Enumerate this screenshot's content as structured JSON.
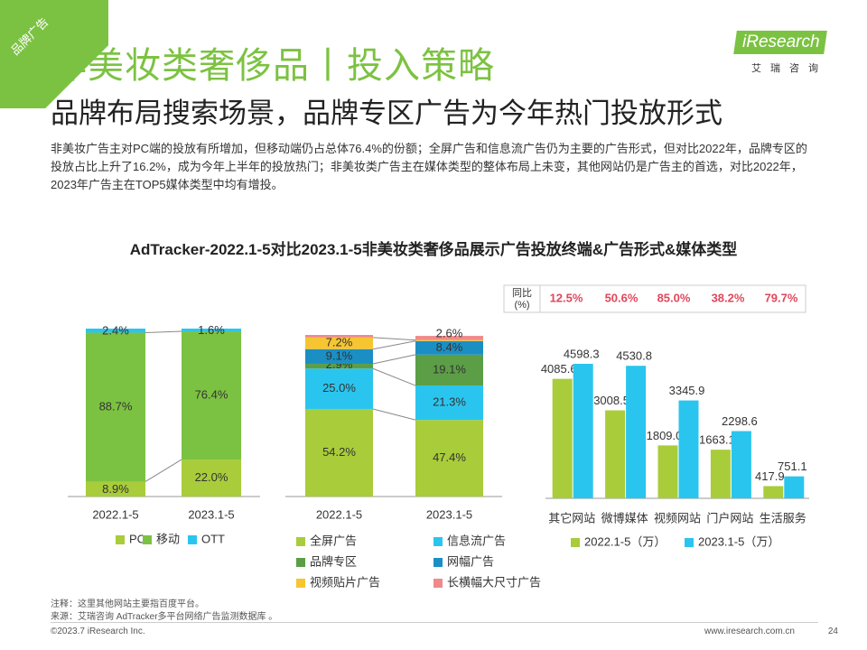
{
  "corner_tag": "品牌广告",
  "title": "非美妆类奢侈品丨投入策略",
  "subtitle": "品牌布局搜索场景，品牌专区广告为今年热门投放形式",
  "logo": {
    "text": "iResearch",
    "cn": "艾瑞咨询"
  },
  "description": "非美妆广告主对PC端的投放有所增加，但移动端仍占总体76.4%的份额；全屏广告和信息流广告仍为主要的广告形式，但对比2022年，品牌专区的投放占比上升了16.2%，成为今年上半年的投放热门；非美妆类广告主在媒体类型的整体布局上未变，其他网站仍是广告主的首选，对比2022年，2023年广告主在TOP5媒体类型中均有增投。",
  "chart_main_title": "AdTracker-2022.1-5对比2023.1-5非美妆类奢侈品展示广告投放终端&广告形式&媒体类型",
  "colors": {
    "green_light": "#a9cc3b",
    "green": "#7cc242",
    "green_dark": "#5b9e46",
    "cyan": "#2ac5ee",
    "blue": "#1b8fc4",
    "yellow": "#f6c531",
    "pink": "#f08a8a",
    "red_text": "#e0475a"
  },
  "chart_data": [
    {
      "type": "bar",
      "stacked": true,
      "normalized": true,
      "categories": [
        "2022.1-5",
        "2023.1-5"
      ],
      "series": [
        {
          "name": "PC",
          "values": [
            8.9,
            22.0
          ],
          "labels": [
            "8.9%",
            "22.0%"
          ],
          "color": "#a9cc3b"
        },
        {
          "name": "移动",
          "values": [
            88.7,
            76.4
          ],
          "labels": [
            "88.7%",
            "76.4%"
          ],
          "color": "#7cc242"
        },
        {
          "name": "OTT",
          "values": [
            2.4,
            1.6
          ],
          "labels": [
            "2.4%",
            "1.6%"
          ],
          "color": "#2ac5ee"
        }
      ]
    },
    {
      "type": "bar",
      "stacked": true,
      "normalized": true,
      "categories": [
        "2022.1-5",
        "2023.1-5"
      ],
      "series": [
        {
          "name": "全屏广告",
          "values": [
            54.2,
            47.4
          ],
          "labels": [
            "54.2%",
            "47.4%"
          ],
          "color": "#a9cc3b"
        },
        {
          "name": "信息流广告",
          "values": [
            25.0,
            21.3
          ],
          "labels": [
            "25.0%",
            "21.3%"
          ],
          "color": "#2ac5ee"
        },
        {
          "name": "品牌专区",
          "values": [
            2.9,
            19.1
          ],
          "labels": [
            "2.9%",
            "19.1%"
          ],
          "color": "#5b9e46"
        },
        {
          "name": "网幅广告",
          "values": [
            9.1,
            8.4
          ],
          "labels": [
            "9.1%",
            "8.4%"
          ],
          "color": "#1b8fc4"
        },
        {
          "name": "视频贴片广告",
          "values": [
            7.2,
            0.6
          ],
          "labels": [
            "7.2%",
            ""
          ],
          "color": "#f6c531"
        },
        {
          "name": "长横幅大尺寸广告",
          "values": [
            1.6,
            2.6
          ],
          "labels": [
            "",
            "2.6%"
          ],
          "color": "#f08a8a"
        }
      ]
    },
    {
      "type": "bar",
      "stacked": false,
      "categories": [
        "其它网站",
        "微博媒体",
        "视频网站",
        "门户网站",
        "生活服务"
      ],
      "series": [
        {
          "name": "2022.1-5（万）",
          "values": [
            4085.6,
            3008.5,
            1809.0,
            1663.1,
            417.9
          ],
          "labels": [
            "4085.6",
            "3008.5",
            "1809.0",
            "1663.1",
            "417.9"
          ],
          "color": "#a9cc3b"
        },
        {
          "name": "2023.1-5（万）",
          "values": [
            4598.3,
            4530.8,
            3345.9,
            2298.6,
            751.1
          ],
          "labels": [
            "4598.3",
            "4530.8",
            "3345.9",
            "2298.6",
            "751.1"
          ],
          "color": "#2ac5ee"
        }
      ],
      "yoy_label": "同比\n(%)",
      "yoy": [
        "12.5%",
        "50.6%",
        "85.0%",
        "38.2%",
        "79.7%"
      ]
    }
  ],
  "notes": {
    "note": "注释：这里其他网站主要指百度平台。",
    "source": "来源：艾瑞咨询 AdTracker多平台网络广告监测数据库 。"
  },
  "footer": {
    "left": "©2023.7 iResearch Inc.",
    "right": "www.iresearch.com.cn",
    "page": "24"
  }
}
